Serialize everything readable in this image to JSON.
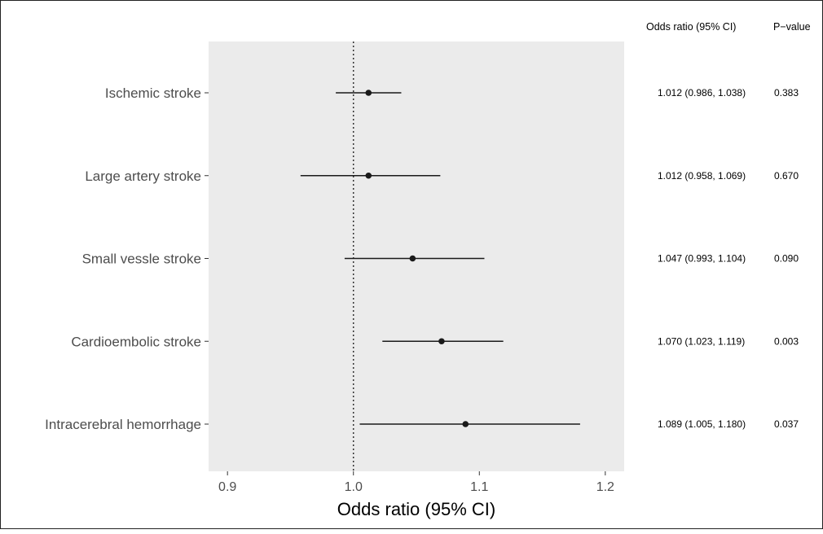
{
  "chart_data": {
    "type": "forest",
    "xlabel": "Odds ratio (95% CI)",
    "xlim": [
      0.885,
      1.215
    ],
    "xticks": [
      "0.9",
      "1.0",
      "1.1",
      "1.2"
    ],
    "reference_line": 1.0,
    "table_headers": [
      "Odds ratio (95% CI)",
      "P−value"
    ],
    "rows": [
      {
        "label": "Ischemic stroke",
        "or": 1.012,
        "lower": 0.986,
        "upper": 1.038,
        "ci_text": "1.012 (0.986, 1.038)",
        "p": "0.383"
      },
      {
        "label": "Large artery stroke",
        "or": 1.012,
        "lower": 0.958,
        "upper": 1.069,
        "ci_text": "1.012 (0.958, 1.069)",
        "p": "0.670"
      },
      {
        "label": "Small vessle stroke",
        "or": 1.047,
        "lower": 0.993,
        "upper": 1.104,
        "ci_text": "1.047 (0.993, 1.104)",
        "p": "0.090"
      },
      {
        "label": "Cardioembolic stroke",
        "or": 1.07,
        "lower": 1.023,
        "upper": 1.119,
        "ci_text": "1.070 (1.023, 1.119)",
        "p": "0.003"
      },
      {
        "label": "Intracerebral hemorrhage",
        "or": 1.089,
        "lower": 1.005,
        "upper": 1.18,
        "ci_text": "1.089 (1.005, 1.180)",
        "p": "0.037"
      }
    ],
    "colors": {
      "panel": "#ebebeb",
      "point": "#1a1a1a",
      "ref_line": "#333333"
    },
    "grid": false
  }
}
